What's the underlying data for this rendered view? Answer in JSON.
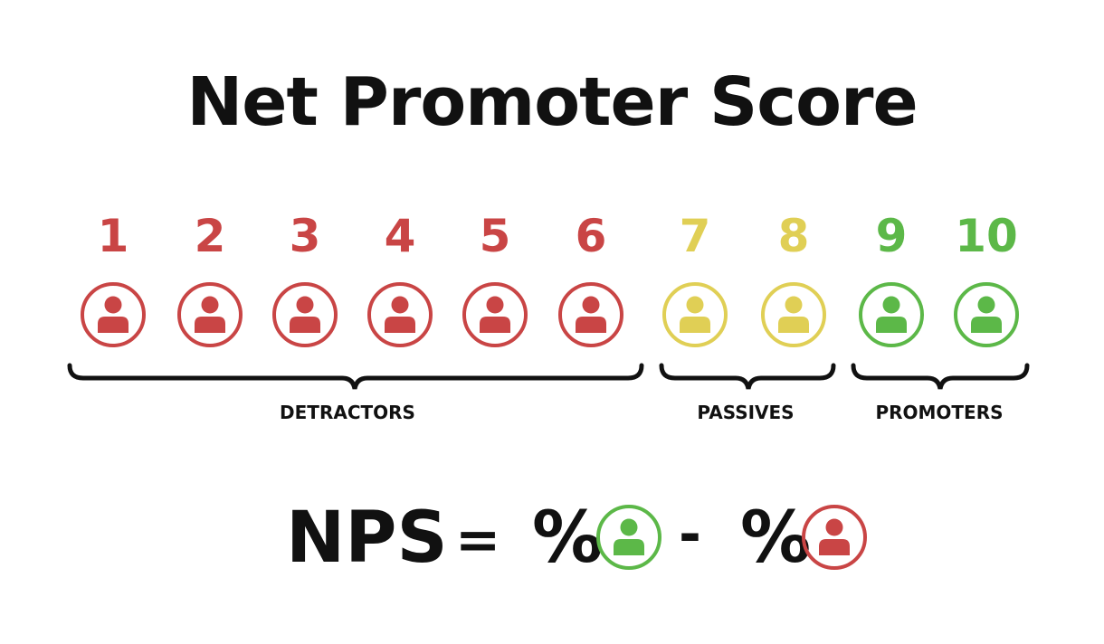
{
  "title": "Net Promoter Score",
  "colors": {
    "detractor": "#c94545",
    "passive": "#e0cf55",
    "promoter": "#5cb848",
    "text": "#111111"
  },
  "scores": [
    {
      "label": "1",
      "group": "detractor"
    },
    {
      "label": "2",
      "group": "detractor"
    },
    {
      "label": "3",
      "group": "detractor"
    },
    {
      "label": "4",
      "group": "detractor"
    },
    {
      "label": "5",
      "group": "detractor"
    },
    {
      "label": "6",
      "group": "detractor"
    },
    {
      "label": "7",
      "group": "passive"
    },
    {
      "label": "8",
      "group": "passive"
    },
    {
      "label": "9",
      "group": "promoter"
    },
    {
      "label": "10",
      "group": "promoter"
    }
  ],
  "groups": {
    "detractors": "DETRACTORS",
    "passives": "PASSIVES",
    "promoters": "PROMOTERS"
  },
  "icon": "person-in-circle-icon",
  "formula": {
    "lhs": "NPS",
    "equals": "=",
    "percent1": "%",
    "minus": "-",
    "percent2": "%"
  }
}
